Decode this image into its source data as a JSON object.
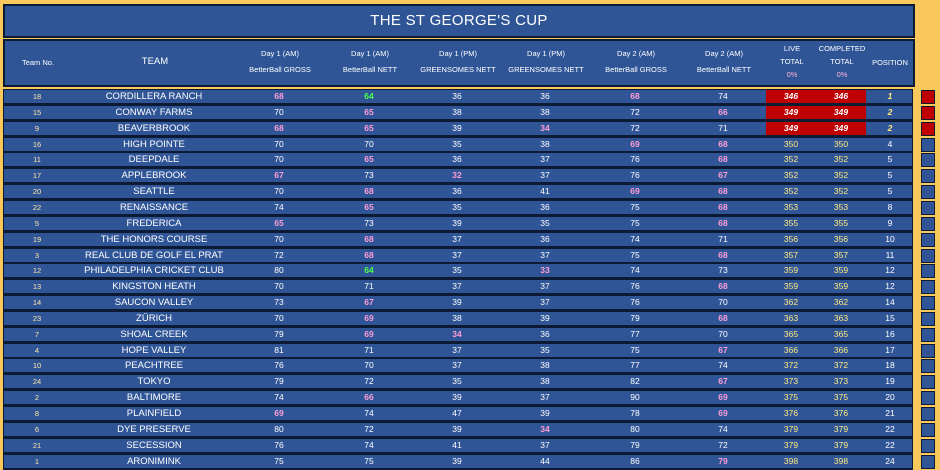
{
  "title": "THE ST GEORGE'S CUP",
  "header": {
    "team_no": "Team No.",
    "team": "TEAM",
    "cols": [
      {
        "l1": "Day 1 (AM)",
        "l2": "BetterBall GROSS"
      },
      {
        "l1": "Day 1 (AM)",
        "l2": "BetterBall NETT"
      },
      {
        "l1": "Day 1 (PM)",
        "l2": "GREENSOMES NETT"
      },
      {
        "l1": "Day 1 (PM)",
        "l2": "GREENSOMES NETT"
      },
      {
        "l1": "Day 2 (AM)",
        "l2": "BetterBall GROSS"
      },
      {
        "l1": "Day 2 (AM)",
        "l2": "BetterBall NETT"
      }
    ],
    "live": {
      "l1": "LIVE",
      "l2": "TOTAL",
      "l3": "0%"
    },
    "completed": {
      "l1": "COMPLETED",
      "l2": "TOTAL",
      "l3": "0%"
    },
    "position": "POSITION"
  },
  "colors": {
    "background": "#f9c85c",
    "panel": "#2f5597",
    "leader": "#c00000",
    "pink": "#ff9ed8",
    "green": "#4cff4c"
  },
  "rows": [
    {
      "no": "18",
      "team": "CORDILLERA RANCH",
      "s": [
        "68",
        "64",
        "36",
        "36",
        "68",
        "74"
      ],
      "live": "346",
      "comp": "346",
      "pos": "1"
    },
    {
      "no": "15",
      "team": "CONWAY FARMS",
      "s": [
        "70",
        "65",
        "38",
        "38",
        "72",
        "66"
      ],
      "live": "349",
      "comp": "349",
      "pos": "2"
    },
    {
      "no": "9",
      "team": "BEAVERBROOK",
      "s": [
        "68",
        "65",
        "39",
        "34",
        "72",
        "71"
      ],
      "live": "349",
      "comp": "349",
      "pos": "2"
    },
    {
      "no": "16",
      "team": "HIGH POINTE",
      "s": [
        "70",
        "70",
        "35",
        "38",
        "69",
        "68"
      ],
      "live": "350",
      "comp": "350",
      "pos": "4"
    },
    {
      "no": "11",
      "team": "DEEPDALE",
      "s": [
        "70",
        "65",
        "36",
        "37",
        "76",
        "68"
      ],
      "live": "352",
      "comp": "352",
      "pos": "5"
    },
    {
      "no": "17",
      "team": "APPLEBROOK",
      "s": [
        "67",
        "73",
        "32",
        "37",
        "76",
        "67"
      ],
      "live": "352",
      "comp": "352",
      "pos": "5"
    },
    {
      "no": "20",
      "team": "SEATTLE",
      "s": [
        "70",
        "68",
        "36",
        "41",
        "69",
        "68"
      ],
      "live": "352",
      "comp": "352",
      "pos": "5"
    },
    {
      "no": "22",
      "team": "RENAISSANCE",
      "s": [
        "74",
        "65",
        "35",
        "36",
        "75",
        "68"
      ],
      "live": "353",
      "comp": "353",
      "pos": "8"
    },
    {
      "no": "5",
      "team": "FREDERICA",
      "s": [
        "65",
        "73",
        "39",
        "35",
        "75",
        "68"
      ],
      "live": "355",
      "comp": "355",
      "pos": "9"
    },
    {
      "no": "19",
      "team": "THE HONORS COURSE",
      "s": [
        "70",
        "68",
        "37",
        "36",
        "74",
        "71"
      ],
      "live": "356",
      "comp": "356",
      "pos": "10"
    },
    {
      "no": "3",
      "team": "REAL CLUB DE GOLF EL PRAT",
      "s": [
        "72",
        "68",
        "37",
        "37",
        "75",
        "68"
      ],
      "live": "357",
      "comp": "357",
      "pos": "11"
    },
    {
      "no": "12",
      "team": "PHILADELPHIA CRICKET CLUB",
      "s": [
        "80",
        "64",
        "35",
        "33",
        "74",
        "73"
      ],
      "live": "359",
      "comp": "359",
      "pos": "12"
    },
    {
      "no": "13",
      "team": "KINGSTON HEATH",
      "s": [
        "70",
        "71",
        "37",
        "37",
        "76",
        "68"
      ],
      "live": "359",
      "comp": "359",
      "pos": "12"
    },
    {
      "no": "14",
      "team": "SAUCON VALLEY",
      "s": [
        "73",
        "67",
        "39",
        "37",
        "76",
        "70"
      ],
      "live": "362",
      "comp": "362",
      "pos": "14"
    },
    {
      "no": "23",
      "team": "ZÜRICH",
      "s": [
        "70",
        "69",
        "38",
        "39",
        "79",
        "68"
      ],
      "live": "363",
      "comp": "363",
      "pos": "15"
    },
    {
      "no": "7",
      "team": "SHOAL CREEK",
      "s": [
        "79",
        "69",
        "34",
        "36",
        "77",
        "70"
      ],
      "live": "365",
      "comp": "365",
      "pos": "16"
    },
    {
      "no": "4",
      "team": "HOPE VALLEY",
      "s": [
        "81",
        "71",
        "37",
        "35",
        "75",
        "67"
      ],
      "live": "366",
      "comp": "366",
      "pos": "17"
    },
    {
      "no": "10",
      "team": "PEACHTREE",
      "s": [
        "76",
        "70",
        "37",
        "38",
        "77",
        "74"
      ],
      "live": "372",
      "comp": "372",
      "pos": "18"
    },
    {
      "no": "24",
      "team": "TOKYO",
      "s": [
        "79",
        "72",
        "35",
        "38",
        "82",
        "67"
      ],
      "live": "373",
      "comp": "373",
      "pos": "19"
    },
    {
      "no": "2",
      "team": "BALTIMORE",
      "s": [
        "74",
        "66",
        "39",
        "37",
        "90",
        "69"
      ],
      "live": "375",
      "comp": "375",
      "pos": "20"
    },
    {
      "no": "8",
      "team": "PLAINFIELD",
      "s": [
        "69",
        "74",
        "47",
        "39",
        "78",
        "69"
      ],
      "live": "376",
      "comp": "376",
      "pos": "21"
    },
    {
      "no": "6",
      "team": "DYE PRESERVE",
      "s": [
        "80",
        "72",
        "39",
        "34",
        "80",
        "74"
      ],
      "live": "379",
      "comp": "379",
      "pos": "22"
    },
    {
      "no": "21",
      "team": "SECESSION",
      "s": [
        "76",
        "74",
        "41",
        "37",
        "79",
        "72"
      ],
      "live": "379",
      "comp": "379",
      "pos": "22"
    },
    {
      "no": "1",
      "team": "ARONIMINK",
      "s": [
        "75",
        "75",
        "39",
        "44",
        "86",
        "79"
      ],
      "live": "398",
      "comp": "398",
      "pos": "24"
    }
  ]
}
